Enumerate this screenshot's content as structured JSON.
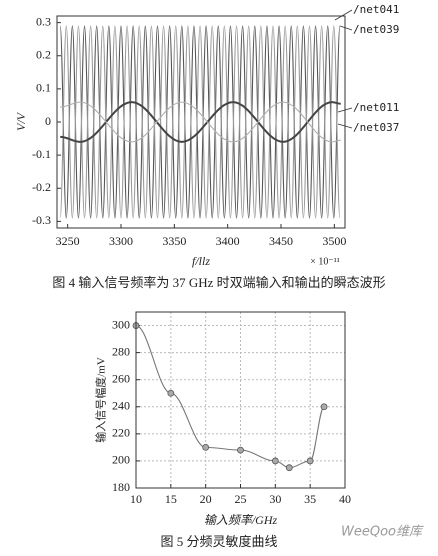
{
  "chart_data": [
    {
      "type": "line",
      "ylabel": "V/V",
      "xlabel": "f/llz",
      "x_multiplier": "× 10⁻¹¹",
      "caption": "图 4  输入信号频率为 37 GHz 时双端输入和输出的瞬态波形",
      "xlim": [
        3240,
        3510
      ],
      "xticks": [
        3250,
        3300,
        3350,
        3400,
        3450,
        3500
      ],
      "ylim": [
        -0.32,
        0.32
      ],
      "yticks": [
        -0.3,
        -0.2,
        -0.1,
        0,
        0.1,
        0.2,
        0.3
      ],
      "grid": false,
      "series": [
        {
          "name": "/net041",
          "color": "#555555",
          "x": [
            3243,
            3248.7,
            3254.4,
            3260.1,
            3265.8,
            3271.5,
            3277.2,
            3282.9,
            3288.6,
            3294.3,
            3300,
            3305.7,
            3311.4,
            3317.1,
            3322.8,
            3328.5,
            3334.2,
            3339.9,
            3345.6,
            3351.3,
            3357,
            3362.7,
            3368.4,
            3374.1,
            3379.8,
            3385.5,
            3391.2,
            3396.9,
            3402.6,
            3408.3,
            3414,
            3419.7,
            3425.4,
            3431.1,
            3436.8,
            3442.5,
            3448.2,
            3453.9,
            3459.6,
            3465.3,
            3471,
            3476.7,
            3482.4,
            3488.1,
            3493.8,
            3499.5,
            3505.2
          ],
          "values": [
            0.29,
            -0.29,
            0.29,
            -0.29,
            0.29,
            -0.29,
            0.29,
            -0.29,
            0.29,
            -0.29,
            0.29,
            -0.29,
            0.29,
            -0.29,
            0.29,
            -0.29,
            0.29,
            -0.29,
            0.29,
            -0.29,
            0.29,
            -0.29,
            0.29,
            -0.29,
            0.29,
            -0.29,
            0.29,
            -0.29,
            0.29,
            -0.29,
            0.29,
            -0.29,
            0.29,
            -0.29,
            0.29,
            -0.29,
            0.29,
            -0.29,
            0.29,
            -0.29,
            0.29,
            -0.29,
            0.29,
            -0.29,
            0.29,
            -0.29,
            0.29
          ]
        },
        {
          "name": "/net039",
          "color": "#9a9a9a",
          "x": [
            3243,
            3248.7,
            3254.4,
            3260.1,
            3265.8,
            3271.5,
            3277.2,
            3282.9,
            3288.6,
            3294.3,
            3300,
            3305.7,
            3311.4,
            3317.1,
            3322.8,
            3328.5,
            3334.2,
            3339.9,
            3345.6,
            3351.3,
            3357,
            3362.7,
            3368.4,
            3374.1,
            3379.8,
            3385.5,
            3391.2,
            3396.9,
            3402.6,
            3408.3,
            3414,
            3419.7,
            3425.4,
            3431.1,
            3436.8,
            3442.5,
            3448.2,
            3453.9,
            3459.6,
            3465.3,
            3471,
            3476.7,
            3482.4,
            3488.1,
            3493.8,
            3499.5,
            3505.2
          ],
          "values": [
            -0.29,
            0.29,
            -0.29,
            0.29,
            -0.29,
            0.29,
            -0.29,
            0.29,
            -0.29,
            0.29,
            -0.29,
            0.29,
            -0.29,
            0.29,
            -0.29,
            0.29,
            -0.29,
            0.29,
            -0.29,
            0.29,
            -0.29,
            0.29,
            -0.29,
            0.29,
            -0.29,
            0.29,
            -0.29,
            0.29,
            -0.29,
            0.29,
            -0.29,
            0.29,
            -0.29,
            0.29,
            -0.29,
            0.29,
            -0.29,
            0.29,
            -0.29,
            0.29,
            -0.29,
            0.29,
            -0.29,
            0.29,
            -0.29,
            0.29,
            -0.29
          ]
        },
        {
          "name": "/net011",
          "color": "#444444",
          "x": [
            3243,
            3262,
            3310,
            3357,
            3405,
            3452,
            3498,
            3506
          ],
          "values": [
            -0.045,
            -0.06,
            0.06,
            -0.06,
            0.06,
            -0.06,
            0.06,
            0.055
          ]
        },
        {
          "name": "/net037",
          "color": "#b0b0b0",
          "x": [
            3243,
            3262,
            3310,
            3357,
            3405,
            3452,
            3498,
            3506
          ],
          "values": [
            0.045,
            0.06,
            -0.06,
            0.06,
            -0.06,
            0.06,
            -0.06,
            -0.055
          ]
        }
      ]
    },
    {
      "type": "line",
      "ylabel": "输入信号幅度/mV",
      "xlabel": "输入频率/GHz",
      "caption": "图 5  分频灵敏度曲线",
      "xlim": [
        10,
        40
      ],
      "xticks": [
        10,
        15,
        20,
        25,
        30,
        35,
        40
      ],
      "ylim": [
        180,
        310
      ],
      "yticks": [
        180,
        200,
        220,
        240,
        260,
        280,
        300
      ],
      "grid": true,
      "series": [
        {
          "color": "#777777",
          "markers": true,
          "x": [
            10,
            15,
            20,
            25,
            30,
            32,
            35,
            37
          ],
          "values": [
            300,
            250,
            210,
            208,
            200,
            195,
            200,
            240
          ]
        }
      ]
    }
  ],
  "watermark": "WeeQoo维库"
}
